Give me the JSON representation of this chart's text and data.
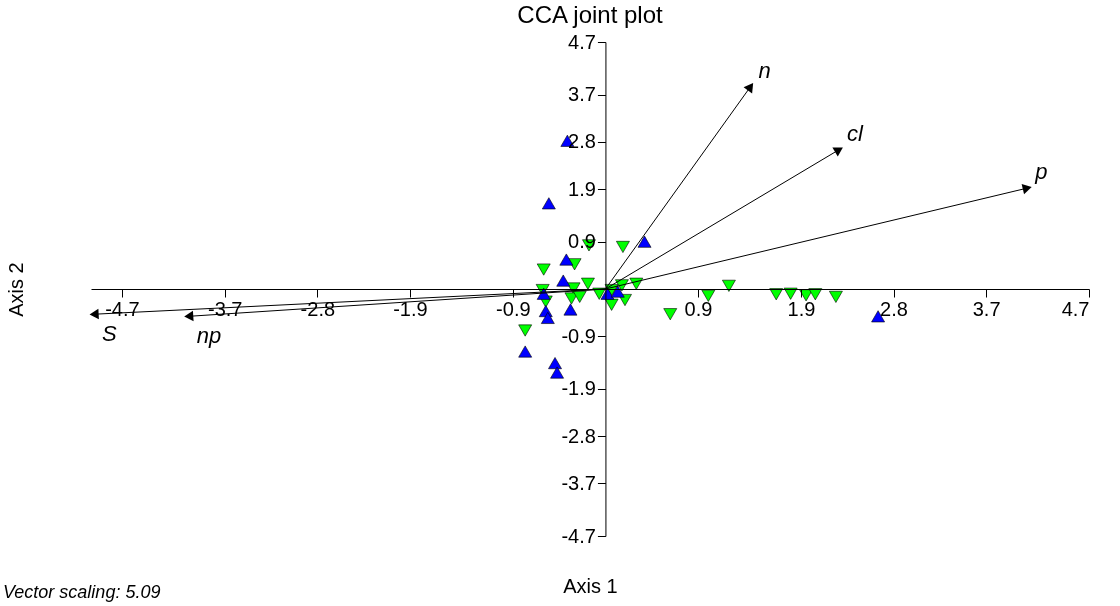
{
  "chart_data": {
    "type": "scatter",
    "title": "CCA joint plot",
    "xlabel": "Axis 1",
    "ylabel": "Axis 2",
    "annotations": [
      "Vector scaling: 5.09"
    ],
    "xlim": [
      -5.0,
      4.7
    ],
    "ylim": [
      -4.7,
      4.7
    ],
    "xticks": [
      -4.7,
      -3.7,
      -2.8,
      -1.9,
      -0.9,
      0.9,
      1.9,
      2.8,
      3.7,
      4.7
    ],
    "yticks": [
      -4.7,
      -3.7,
      -2.8,
      -1.9,
      -0.9,
      0.9,
      1.9,
      2.8,
      3.7,
      4.7
    ],
    "grid": false,
    "series": [
      {
        "marker": "triangle",
        "color": "#0000ff",
        "x": [
          -0.37,
          -0.55,
          0.38,
          -0.38,
          -0.41,
          -0.6,
          -0.58,
          -0.56,
          -0.34,
          -0.78,
          -0.49,
          -0.47,
          0.02,
          0.12,
          2.65
        ],
        "values": [
          2.82,
          1.63,
          0.9,
          0.56,
          0.16,
          -0.09,
          -0.42,
          -0.55,
          -0.39,
          -1.19,
          -1.41,
          -1.59,
          -0.09,
          -0.05,
          -0.52
        ]
      },
      {
        "marker": "triangle-down",
        "color": "#00ff00",
        "x": [
          -0.16,
          0.17,
          -0.6,
          -0.3,
          -0.61,
          -0.58,
          -0.31,
          -0.17,
          -0.33,
          -0.25,
          -0.06,
          0.06,
          0.19,
          0.16,
          0.3,
          0.06,
          -0.78,
          0.63,
          1.0,
          1.2,
          1.66,
          1.8,
          1.95,
          2.04,
          2.24
        ],
        "values": [
          0.83,
          0.8,
          0.37,
          0.47,
          -0.02,
          -0.24,
          0.01,
          0.1,
          -0.18,
          -0.15,
          -0.09,
          -0.3,
          -0.21,
          0.07,
          0.1,
          -0.02,
          -0.79,
          -0.48,
          -0.13,
          0.06,
          -0.1,
          -0.09,
          -0.12,
          -0.1,
          -0.15
        ]
      },
      {
        "type": "line",
        "name": "n",
        "color": "#000000",
        "x": [
          0,
          1.41
        ],
        "values": [
          0,
          3.85
        ]
      },
      {
        "type": "line",
        "name": "cl",
        "color": "#000000",
        "x": [
          0,
          2.27
        ],
        "values": [
          0,
          2.65
        ]
      },
      {
        "type": "line",
        "name": "p",
        "color": "#000000",
        "x": [
          0,
          4.1
        ],
        "values": [
          0,
          1.92
        ]
      },
      {
        "type": "line",
        "name": "S",
        "color": "#000000",
        "x": [
          0,
          -4.97
        ],
        "values": [
          0,
          -0.48
        ]
      },
      {
        "type": "line",
        "name": "np",
        "color": "#000000",
        "x": [
          0,
          -4.05
        ],
        "values": [
          0,
          -0.52
        ]
      }
    ]
  }
}
